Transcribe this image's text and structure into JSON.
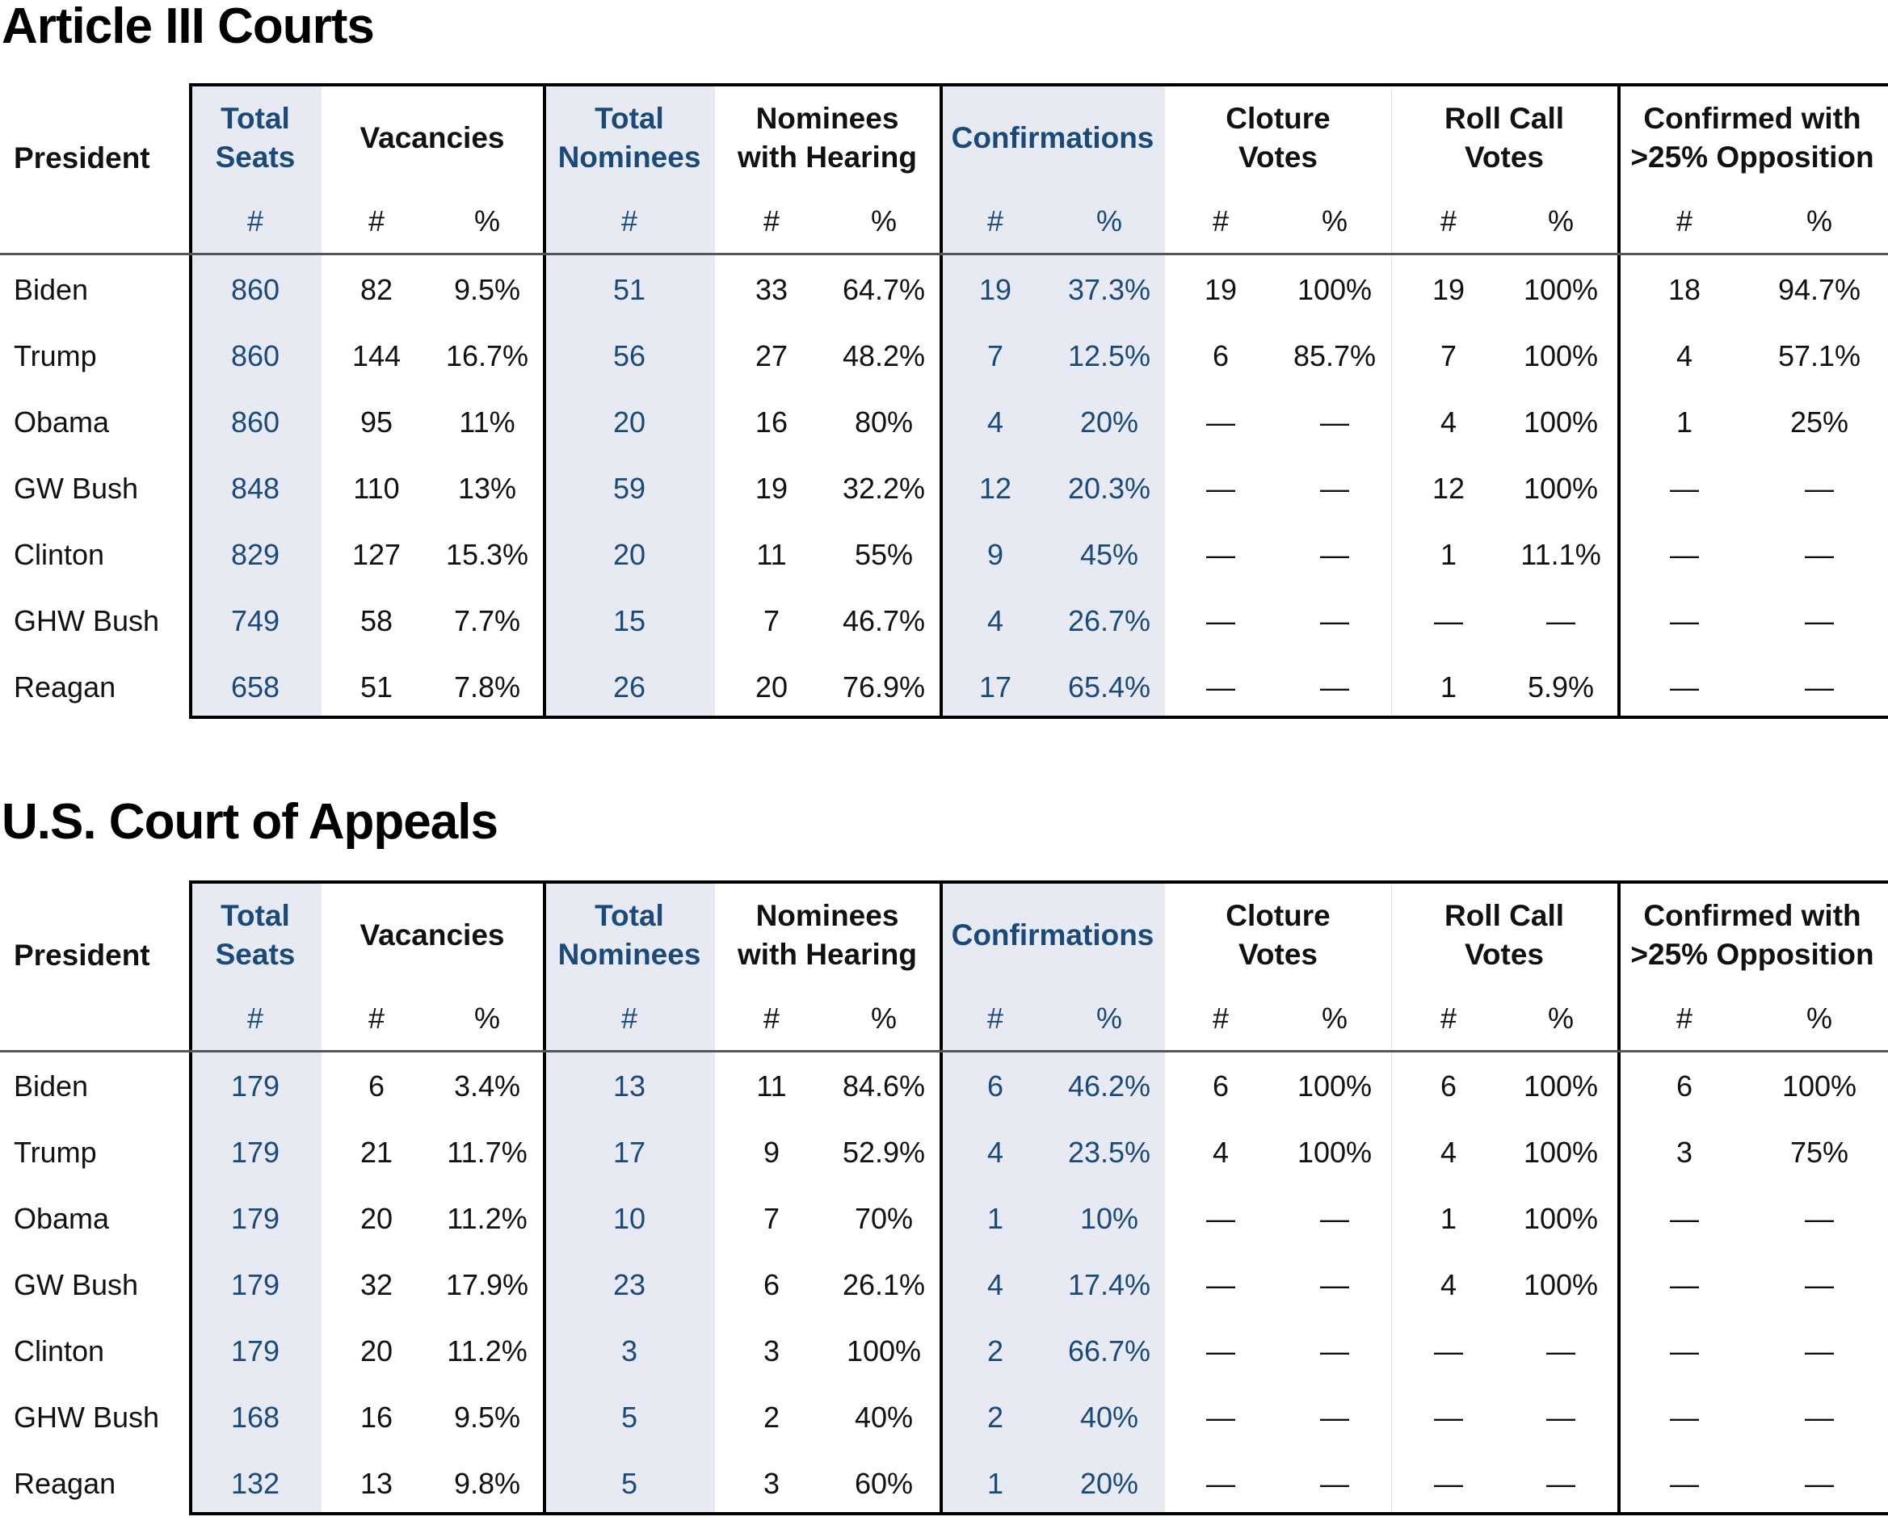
{
  "tables": [
    {
      "title": "Article III Courts",
      "rows": [
        {
          "president": "Biden",
          "seats": "860",
          "vac_n": "82",
          "vac_p": "9.5%",
          "nom": "51",
          "hear_n": "33",
          "hear_p": "64.7%",
          "conf_n": "19",
          "conf_p": "37.3%",
          "clo_n": "19",
          "clo_p": "100%",
          "roll_n": "19",
          "roll_p": "100%",
          "opp_n": "18",
          "opp_p": "94.7%"
        },
        {
          "president": "Trump",
          "seats": "860",
          "vac_n": "144",
          "vac_p": "16.7%",
          "nom": "56",
          "hear_n": "27",
          "hear_p": "48.2%",
          "conf_n": "7",
          "conf_p": "12.5%",
          "clo_n": "6",
          "clo_p": "85.7%",
          "roll_n": "7",
          "roll_p": "100%",
          "opp_n": "4",
          "opp_p": "57.1%"
        },
        {
          "president": "Obama",
          "seats": "860",
          "vac_n": "95",
          "vac_p": "11%",
          "nom": "20",
          "hear_n": "16",
          "hear_p": "80%",
          "conf_n": "4",
          "conf_p": "20%",
          "clo_n": "—",
          "clo_p": "—",
          "roll_n": "4",
          "roll_p": "100%",
          "opp_n": "1",
          "opp_p": "25%"
        },
        {
          "president": "GW Bush",
          "seats": "848",
          "vac_n": "110",
          "vac_p": "13%",
          "nom": "59",
          "hear_n": "19",
          "hear_p": "32.2%",
          "conf_n": "12",
          "conf_p": "20.3%",
          "clo_n": "—",
          "clo_p": "—",
          "roll_n": "12",
          "roll_p": "100%",
          "opp_n": "—",
          "opp_p": "—"
        },
        {
          "president": "Clinton",
          "seats": "829",
          "vac_n": "127",
          "vac_p": "15.3%",
          "nom": "20",
          "hear_n": "11",
          "hear_p": "55%",
          "conf_n": "9",
          "conf_p": "45%",
          "clo_n": "—",
          "clo_p": "—",
          "roll_n": "1",
          "roll_p": "11.1%",
          "opp_n": "—",
          "opp_p": "—"
        },
        {
          "president": "GHW Bush",
          "seats": "749",
          "vac_n": "58",
          "vac_p": "7.7%",
          "nom": "15",
          "hear_n": "7",
          "hear_p": "46.7%",
          "conf_n": "4",
          "conf_p": "26.7%",
          "clo_n": "—",
          "clo_p": "—",
          "roll_n": "—",
          "roll_p": "—",
          "opp_n": "—",
          "opp_p": "—"
        },
        {
          "president": "Reagan",
          "seats": "658",
          "vac_n": "51",
          "vac_p": "7.8%",
          "nom": "26",
          "hear_n": "20",
          "hear_p": "76.9%",
          "conf_n": "17",
          "conf_p": "65.4%",
          "clo_n": "—",
          "clo_p": "—",
          "roll_n": "1",
          "roll_p": "5.9%",
          "opp_n": "—",
          "opp_p": "—"
        }
      ]
    },
    {
      "title": "U.S. Court of Appeals",
      "rows": [
        {
          "president": "Biden",
          "seats": "179",
          "vac_n": "6",
          "vac_p": "3.4%",
          "nom": "13",
          "hear_n": "11",
          "hear_p": "84.6%",
          "conf_n": "6",
          "conf_p": "46.2%",
          "clo_n": "6",
          "clo_p": "100%",
          "roll_n": "6",
          "roll_p": "100%",
          "opp_n": "6",
          "opp_p": "100%"
        },
        {
          "president": "Trump",
          "seats": "179",
          "vac_n": "21",
          "vac_p": "11.7%",
          "nom": "17",
          "hear_n": "9",
          "hear_p": "52.9%",
          "conf_n": "4",
          "conf_p": "23.5%",
          "clo_n": "4",
          "clo_p": "100%",
          "roll_n": "4",
          "roll_p": "100%",
          "opp_n": "3",
          "opp_p": "75%"
        },
        {
          "president": "Obama",
          "seats": "179",
          "vac_n": "20",
          "vac_p": "11.2%",
          "nom": "10",
          "hear_n": "7",
          "hear_p": "70%",
          "conf_n": "1",
          "conf_p": "10%",
          "clo_n": "—",
          "clo_p": "—",
          "roll_n": "1",
          "roll_p": "100%",
          "opp_n": "—",
          "opp_p": "—"
        },
        {
          "president": "GW Bush",
          "seats": "179",
          "vac_n": "32",
          "vac_p": "17.9%",
          "nom": "23",
          "hear_n": "6",
          "hear_p": "26.1%",
          "conf_n": "4",
          "conf_p": "17.4%",
          "clo_n": "—",
          "clo_p": "—",
          "roll_n": "4",
          "roll_p": "100%",
          "opp_n": "—",
          "opp_p": "—"
        },
        {
          "president": "Clinton",
          "seats": "179",
          "vac_n": "20",
          "vac_p": "11.2%",
          "nom": "3",
          "hear_n": "3",
          "hear_p": "100%",
          "conf_n": "2",
          "conf_p": "66.7%",
          "clo_n": "—",
          "clo_p": "—",
          "roll_n": "—",
          "roll_p": "—",
          "opp_n": "—",
          "opp_p": "—"
        },
        {
          "president": "GHW Bush",
          "seats": "168",
          "vac_n": "16",
          "vac_p": "9.5%",
          "nom": "5",
          "hear_n": "2",
          "hear_p": "40%",
          "conf_n": "2",
          "conf_p": "40%",
          "clo_n": "—",
          "clo_p": "—",
          "roll_n": "—",
          "roll_p": "—",
          "opp_n": "—",
          "opp_p": "—"
        },
        {
          "president": "Reagan",
          "seats": "132",
          "vac_n": "13",
          "vac_p": "9.8%",
          "nom": "5",
          "hear_n": "3",
          "hear_p": "60%",
          "conf_n": "1",
          "conf_p": "20%",
          "clo_n": "—",
          "clo_p": "—",
          "roll_n": "—",
          "roll_p": "—",
          "opp_n": "—",
          "opp_p": "—"
        }
      ]
    }
  ],
  "headers": {
    "president": "President",
    "groups": [
      {
        "key": "seats",
        "line1": "Total",
        "line2": "Seats",
        "blue": true
      },
      {
        "key": "vac",
        "line1": "Vacancies",
        "line2": "",
        "blue": false
      },
      {
        "key": "nom",
        "line1": "Total",
        "line2": "Nominees",
        "blue": true
      },
      {
        "key": "hear",
        "line1": "Nominees",
        "line2": "with Hearing",
        "blue": false
      },
      {
        "key": "conf",
        "line1": "Confirmations",
        "line2": "",
        "blue": true
      },
      {
        "key": "clo",
        "line1": "Cloture",
        "line2": "Votes",
        "blue": false
      },
      {
        "key": "roll",
        "line1": "Roll Call",
        "line2": "Votes",
        "blue": false
      },
      {
        "key": "opp",
        "line1": "Confirmed with",
        "line2": ">25% Opposition",
        "blue": false
      }
    ],
    "num_symbol": "#",
    "pct_symbol": "%"
  },
  "colors": {
    "accent_blue": "#1a4a7a",
    "shade": "#e7e9f3"
  }
}
